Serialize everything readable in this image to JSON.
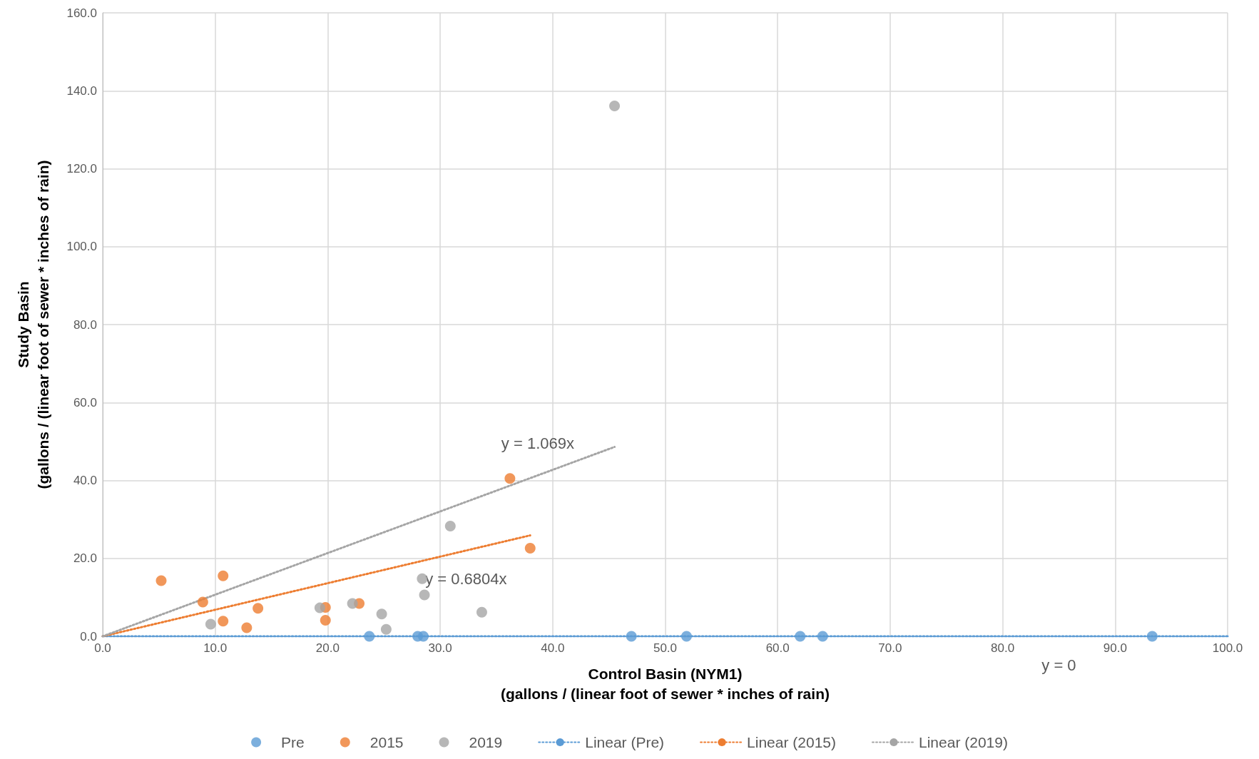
{
  "chart_data": {
    "type": "scatter",
    "xlabel": "Control Basin (NYM1)\n(gallons / (linear foot of sewer * inches of rain)",
    "ylabel": "Study Basin\n(gallons / (linear foot of sewer * inches of rain)",
    "marker": "circle",
    "grid": true,
    "legend": "bottom",
    "xlim": [
      0,
      100
    ],
    "ylim": [
      0,
      160
    ],
    "xticks": [
      {
        "value": 0,
        "label": "0.0"
      },
      {
        "value": 10,
        "label": "10.0"
      },
      {
        "value": 20,
        "label": "20.0"
      },
      {
        "value": 30,
        "label": "30.0"
      },
      {
        "value": 40,
        "label": "40.0"
      },
      {
        "value": 50,
        "label": "50.0"
      },
      {
        "value": 60,
        "label": "60.0"
      },
      {
        "value": 70,
        "label": "70.0"
      },
      {
        "value": 80,
        "label": "80.0"
      },
      {
        "value": 90,
        "label": "90.0"
      },
      {
        "value": 100,
        "label": "100.0"
      }
    ],
    "yticks": [
      {
        "value": 0,
        "label": "0.0"
      },
      {
        "value": 20,
        "label": "20.0"
      },
      {
        "value": 40,
        "label": "40.0"
      },
      {
        "value": 60,
        "label": "60.0"
      },
      {
        "value": 80,
        "label": "80.0"
      },
      {
        "value": 100,
        "label": "100.0"
      },
      {
        "value": 120,
        "label": "120.0"
      },
      {
        "value": 140,
        "label": "140.0"
      },
      {
        "value": 160,
        "label": "160.0"
      }
    ],
    "series": [
      {
        "name": "Pre",
        "color": "#5b9bd5",
        "x": [
          23.7,
          28.0,
          28.5,
          47.0,
          51.9,
          62.0,
          64.0,
          93.3
        ],
        "values": [
          0,
          0,
          0,
          0,
          0,
          0,
          0,
          0
        ]
      },
      {
        "name": "2015",
        "color": "#ed7d31",
        "x": [
          5.2,
          10.7,
          8.9,
          13.8,
          10.7,
          12.8,
          19.8,
          19.8,
          22.8,
          36.2,
          38.0
        ],
        "values": [
          14.3,
          15.5,
          8.8,
          7.2,
          3.9,
          2.2,
          7.4,
          4.1,
          8.4,
          40.5,
          22.6
        ]
      },
      {
        "name": "2019",
        "color": "#a5a5a5",
        "x": [
          9.6,
          19.3,
          22.2,
          24.8,
          25.2,
          28.4,
          28.6,
          30.9,
          33.7,
          45.5
        ],
        "values": [
          3.1,
          7.3,
          8.4,
          5.7,
          1.8,
          14.8,
          10.6,
          28.3,
          6.2,
          136.1
        ]
      },
      {
        "name": "Linear (Pre)",
        "type": "line",
        "marker": "none",
        "line_style": "dotted",
        "color": "#5b9bd5",
        "x": [
          0,
          100
        ],
        "values": [
          0,
          0
        ]
      },
      {
        "name": "Linear (2015)",
        "type": "line",
        "marker": "none",
        "line_style": "dotted",
        "color": "#ed7d31",
        "x": [
          0,
          38.0
        ],
        "values": [
          0,
          25.9
        ]
      },
      {
        "name": "Linear (2019)",
        "type": "line",
        "marker": "none",
        "line_style": "dotted",
        "color": "#a5a5a5",
        "x": [
          0,
          45.5
        ],
        "values": [
          0,
          48.6
        ]
      }
    ],
    "annotations": [
      "y = 0",
      "y = 0.6804x",
      "y = 1.069x"
    ]
  }
}
